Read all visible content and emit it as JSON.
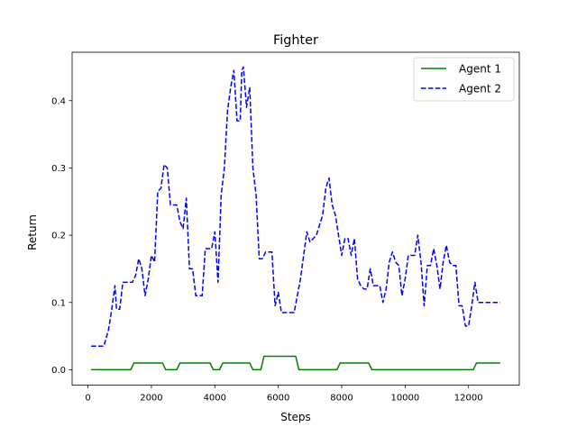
{
  "chart_data": {
    "type": "line",
    "title": "Fighter",
    "xlabel": "Steps",
    "ylabel": "Return",
    "xlim": [
      -500,
      13600
    ],
    "ylim": [
      -0.023,
      0.472
    ],
    "xticks": [
      0,
      2000,
      4000,
      6000,
      8000,
      10000,
      12000
    ],
    "xtick_labels": [
      "0",
      "2000",
      "4000",
      "6000",
      "8000",
      "10000",
      "12000"
    ],
    "yticks": [
      0.0,
      0.1,
      0.2,
      0.3,
      0.4
    ],
    "ytick_labels": [
      "0.0",
      "0.1",
      "0.2",
      "0.3",
      "0.4"
    ],
    "grid": false,
    "legend_position": "top-right",
    "series": [
      {
        "name": "Agent 1",
        "color": "#008000",
        "style": "solid",
        "points": [
          [
            100,
            0.0
          ],
          [
            1350,
            0.0
          ],
          [
            1450,
            0.01
          ],
          [
            2350,
            0.01
          ],
          [
            2450,
            0.0
          ],
          [
            2800,
            0.0
          ],
          [
            2900,
            0.01
          ],
          [
            3850,
            0.01
          ],
          [
            3950,
            0.0
          ],
          [
            4150,
            0.0
          ],
          [
            4250,
            0.01
          ],
          [
            5100,
            0.01
          ],
          [
            5200,
            0.0
          ],
          [
            5450,
            0.0
          ],
          [
            5550,
            0.02
          ],
          [
            6550,
            0.02
          ],
          [
            6650,
            0.0
          ],
          [
            7850,
            0.0
          ],
          [
            7950,
            0.01
          ],
          [
            8850,
            0.01
          ],
          [
            8950,
            0.0
          ],
          [
            12150,
            0.0
          ],
          [
            12250,
            0.01
          ],
          [
            13000,
            0.01
          ]
        ]
      },
      {
        "name": "Agent 2",
        "color": "#0000ff",
        "style": "dashed",
        "points": [
          [
            100,
            0.035
          ],
          [
            500,
            0.035
          ],
          [
            650,
            0.06
          ],
          [
            750,
            0.09
          ],
          [
            850,
            0.125
          ],
          [
            900,
            0.09
          ],
          [
            1000,
            0.09
          ],
          [
            1100,
            0.13
          ],
          [
            1400,
            0.13
          ],
          [
            1500,
            0.14
          ],
          [
            1600,
            0.165
          ],
          [
            1700,
            0.15
          ],
          [
            1800,
            0.11
          ],
          [
            1900,
            0.135
          ],
          [
            2000,
            0.17
          ],
          [
            2100,
            0.16
          ],
          [
            2200,
            0.265
          ],
          [
            2300,
            0.27
          ],
          [
            2400,
            0.305
          ],
          [
            2500,
            0.3
          ],
          [
            2600,
            0.245
          ],
          [
            2800,
            0.245
          ],
          [
            2900,
            0.22
          ],
          [
            3000,
            0.21
          ],
          [
            3100,
            0.255
          ],
          [
            3200,
            0.15
          ],
          [
            3300,
            0.15
          ],
          [
            3400,
            0.11
          ],
          [
            3600,
            0.11
          ],
          [
            3700,
            0.18
          ],
          [
            3900,
            0.18
          ],
          [
            4000,
            0.205
          ],
          [
            4100,
            0.13
          ],
          [
            4200,
            0.26
          ],
          [
            4300,
            0.3
          ],
          [
            4400,
            0.385
          ],
          [
            4500,
            0.42
          ],
          [
            4600,
            0.445
          ],
          [
            4700,
            0.37
          ],
          [
            4800,
            0.37
          ],
          [
            4850,
            0.445
          ],
          [
            4900,
            0.45
          ],
          [
            5000,
            0.39
          ],
          [
            5100,
            0.42
          ],
          [
            5200,
            0.3
          ],
          [
            5300,
            0.26
          ],
          [
            5400,
            0.165
          ],
          [
            5500,
            0.165
          ],
          [
            5600,
            0.175
          ],
          [
            5800,
            0.175
          ],
          [
            5900,
            0.095
          ],
          [
            6000,
            0.115
          ],
          [
            6100,
            0.085
          ],
          [
            6500,
            0.085
          ],
          [
            6700,
            0.135
          ],
          [
            6800,
            0.17
          ],
          [
            6900,
            0.205
          ],
          [
            7000,
            0.19
          ],
          [
            7200,
            0.2
          ],
          [
            7300,
            0.215
          ],
          [
            7400,
            0.23
          ],
          [
            7500,
            0.27
          ],
          [
            7600,
            0.285
          ],
          [
            7700,
            0.245
          ],
          [
            7800,
            0.23
          ],
          [
            7900,
            0.2
          ],
          [
            8000,
            0.17
          ],
          [
            8100,
            0.195
          ],
          [
            8200,
            0.195
          ],
          [
            8300,
            0.17
          ],
          [
            8400,
            0.195
          ],
          [
            8500,
            0.135
          ],
          [
            8600,
            0.125
          ],
          [
            8700,
            0.12
          ],
          [
            8800,
            0.12
          ],
          [
            8900,
            0.15
          ],
          [
            9000,
            0.125
          ],
          [
            9200,
            0.125
          ],
          [
            9300,
            0.1
          ],
          [
            9400,
            0.12
          ],
          [
            9500,
            0.16
          ],
          [
            9600,
            0.175
          ],
          [
            9700,
            0.16
          ],
          [
            9800,
            0.155
          ],
          [
            9900,
            0.11
          ],
          [
            10000,
            0.135
          ],
          [
            10100,
            0.17
          ],
          [
            10300,
            0.17
          ],
          [
            10400,
            0.2
          ],
          [
            10500,
            0.16
          ],
          [
            10600,
            0.095
          ],
          [
            10700,
            0.155
          ],
          [
            10800,
            0.155
          ],
          [
            10900,
            0.18
          ],
          [
            11000,
            0.155
          ],
          [
            11100,
            0.12
          ],
          [
            11200,
            0.16
          ],
          [
            11300,
            0.185
          ],
          [
            11400,
            0.16
          ],
          [
            11500,
            0.155
          ],
          [
            11600,
            0.155
          ],
          [
            11700,
            0.095
          ],
          [
            11800,
            0.095
          ],
          [
            11900,
            0.065
          ],
          [
            12000,
            0.065
          ],
          [
            12100,
            0.095
          ],
          [
            12200,
            0.13
          ],
          [
            12300,
            0.1
          ],
          [
            13000,
            0.1
          ]
        ]
      }
    ]
  }
}
